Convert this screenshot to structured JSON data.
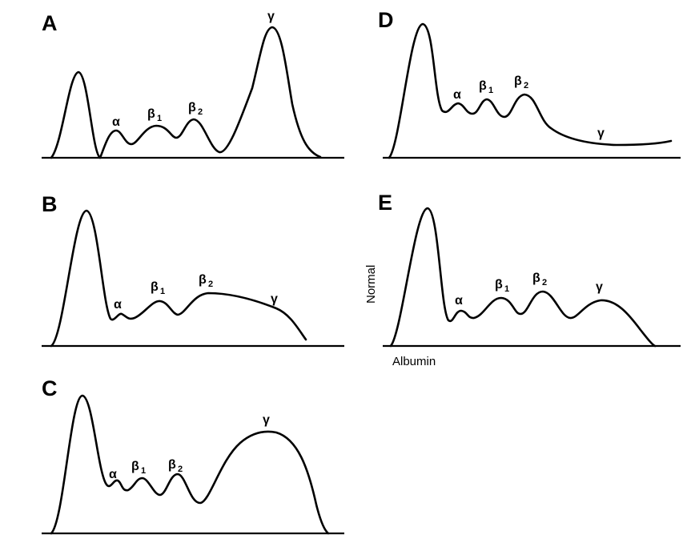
{
  "panels": {
    "A": {
      "letter": "A",
      "alpha": "α",
      "beta1": "β",
      "beta1_sub": "1",
      "beta2": "β",
      "beta2_sub": "2",
      "gamma": "γ"
    },
    "B": {
      "letter": "B",
      "alpha": "α",
      "beta1": "β",
      "beta1_sub": "1",
      "beta2": "β",
      "beta2_sub": "2",
      "gamma": "γ"
    },
    "C": {
      "letter": "C",
      "alpha": "α",
      "beta1": "β",
      "beta1_sub": "1",
      "beta2": "β",
      "beta2_sub": "2",
      "gamma": "γ"
    },
    "D": {
      "letter": "D",
      "alpha": "α",
      "beta1": "β",
      "beta1_sub": "1",
      "beta2": "β",
      "beta2_sub": "2",
      "gamma": "γ"
    },
    "E": {
      "letter": "E",
      "alpha": "α",
      "beta1": "β",
      "beta1_sub": "1",
      "beta2": "β",
      "beta2_sub": "2",
      "gamma": "γ"
    }
  },
  "labels": {
    "normal": "Normal",
    "albumin": "Albumin"
  }
}
